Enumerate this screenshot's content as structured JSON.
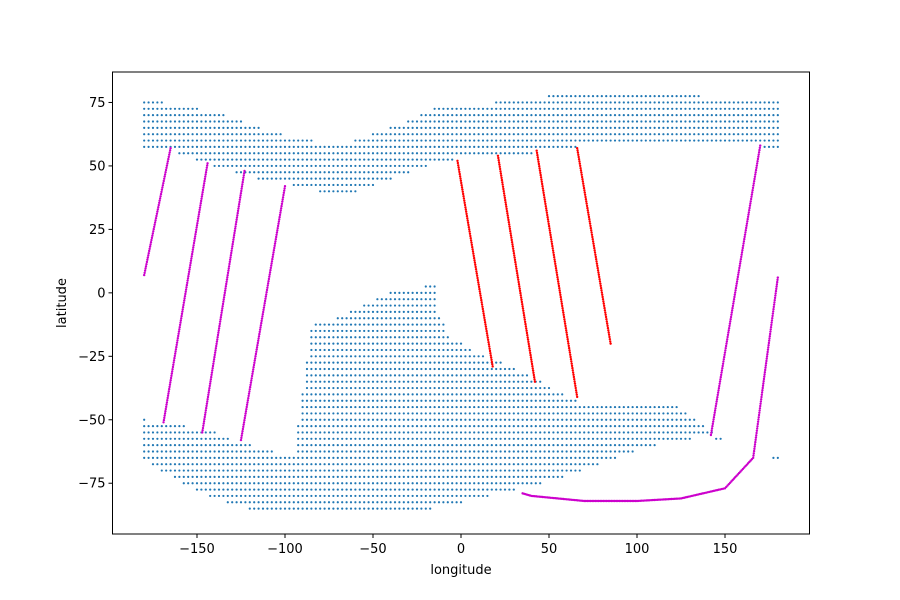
{
  "chart_data": {
    "type": "scatter",
    "title": "",
    "xlabel": "longitude",
    "ylabel": "latitude",
    "xlim": [
      -198,
      198
    ],
    "ylim": [
      -95,
      87
    ],
    "xticks": [
      -150,
      -100,
      -50,
      0,
      50,
      100,
      150
    ],
    "yticks": [
      -75,
      -50,
      -25,
      0,
      25,
      50,
      75
    ],
    "xtick_labels": [
      "−150",
      "−100",
      "−50",
      "0",
      "50",
      "100",
      "150"
    ],
    "ytick_labels": [
      "−75",
      "−50",
      "−25",
      "0",
      "25",
      "50",
      "75"
    ],
    "grid": false,
    "legend": "none",
    "colors": {
      "grid_points": "#1f77b4",
      "red_tracks": "#ff0000",
      "magenta_tracks": "#cc00cc"
    },
    "grid_spacing_deg": 2.5,
    "grid_regions": [
      {
        "name": "northern band",
        "x_range": [
          -180,
          180
        ],
        "lat_top": [
          [
            -180,
            77
          ],
          [
            -170,
            75
          ],
          [
            -145,
            72
          ],
          [
            -125,
            68
          ],
          [
            -110,
            64
          ],
          [
            -95,
            61
          ],
          [
            -75,
            59
          ],
          [
            -60,
            60
          ],
          [
            -45,
            64
          ],
          [
            -30,
            68
          ],
          [
            -15,
            73
          ],
          [
            0,
            74
          ],
          [
            20,
            75
          ],
          [
            40,
            77
          ],
          [
            80,
            79
          ],
          [
            120,
            79
          ],
          [
            140,
            77
          ],
          [
            180,
            77
          ]
        ],
        "lat_bottom": [
          [
            -180,
            56
          ],
          [
            -165,
            56
          ],
          [
            -150,
            52
          ],
          [
            -130,
            48
          ],
          [
            -115,
            45
          ],
          [
            -100,
            43
          ],
          [
            -80,
            40
          ],
          [
            -65,
            39
          ],
          [
            -50,
            42
          ],
          [
            -35,
            46
          ],
          [
            -20,
            50
          ],
          [
            -10,
            52
          ],
          [
            0,
            53
          ],
          [
            20,
            54
          ],
          [
            40,
            55
          ],
          [
            60,
            57
          ],
          [
            80,
            59
          ],
          [
            110,
            60
          ],
          [
            150,
            59
          ],
          [
            180,
            57
          ]
        ]
      },
      {
        "name": "southern mass",
        "x_range": [
          -180,
          180
        ],
        "lat_top": [
          [
            -180,
            -50
          ],
          [
            -160,
            -52
          ],
          [
            -140,
            -55
          ],
          [
            -125,
            -59
          ],
          [
            -110,
            -62
          ],
          [
            -95,
            -64
          ],
          [
            -85,
            -13
          ],
          [
            -70,
            -10
          ],
          [
            -55,
            -5
          ],
          [
            -40,
            0
          ],
          [
            -25,
            2
          ],
          [
            -15,
            3
          ],
          [
            -12,
            -10
          ],
          [
            -5,
            -18
          ],
          [
            10,
            -24
          ],
          [
            25,
            -28
          ],
          [
            40,
            -33
          ],
          [
            55,
            -39
          ],
          [
            70,
            -44
          ],
          [
            100,
            -44
          ],
          [
            120,
            -44
          ],
          [
            130,
            -48
          ],
          [
            140,
            -53
          ],
          [
            150,
            -58
          ],
          [
            165,
            -63
          ],
          [
            180,
            -65
          ]
        ],
        "lat_bottom": [
          [
            -180,
            -66
          ],
          [
            -165,
            -72
          ],
          [
            -150,
            -78
          ],
          [
            -135,
            -82
          ],
          [
            -120,
            -85
          ],
          [
            -100,
            -86
          ],
          [
            -80,
            -87
          ],
          [
            -50,
            -87
          ],
          [
            -25,
            -86
          ],
          [
            -10,
            -84
          ],
          [
            5,
            -82
          ],
          [
            20,
            -79
          ],
          [
            40,
            -76
          ],
          [
            60,
            -72
          ],
          [
            80,
            -67
          ],
          [
            100,
            -62
          ],
          [
            120,
            -58
          ],
          [
            140,
            -57
          ],
          [
            160,
            -60
          ],
          [
            180,
            -66
          ]
        ]
      }
    ],
    "series": [
      {
        "color": "red",
        "tracks": [
          [
            [
              -2,
              52
            ],
            [
              18,
              -29
            ]
          ],
          [
            [
              21,
              54
            ],
            [
              42,
              -35
            ]
          ],
          [
            [
              43,
              56
            ],
            [
              66,
              -41
            ]
          ],
          [
            [
              66,
              57
            ],
            [
              85,
              -20
            ]
          ]
        ]
      },
      {
        "color": "magenta",
        "tracks": [
          [
            [
              -165,
              57
            ],
            [
              -180,
              7
            ]
          ],
          [
            [
              -144,
              51
            ],
            [
              -169,
              -51
            ]
          ],
          [
            [
              -123,
              48
            ],
            [
              -147,
              -55
            ]
          ],
          [
            [
              -100,
              42
            ],
            [
              -125,
              -58
            ]
          ],
          [
            [
              170,
              58
            ],
            [
              142,
              -56
            ]
          ],
          [
            [
              180,
              6
            ],
            [
              166,
              -65
            ],
            [
              150,
              -77
            ],
            [
              125,
              -81
            ],
            [
              100,
              -82
            ],
            [
              70,
              -82
            ],
            [
              40,
              -80
            ],
            [
              35,
              -79
            ]
          ]
        ]
      }
    ]
  }
}
